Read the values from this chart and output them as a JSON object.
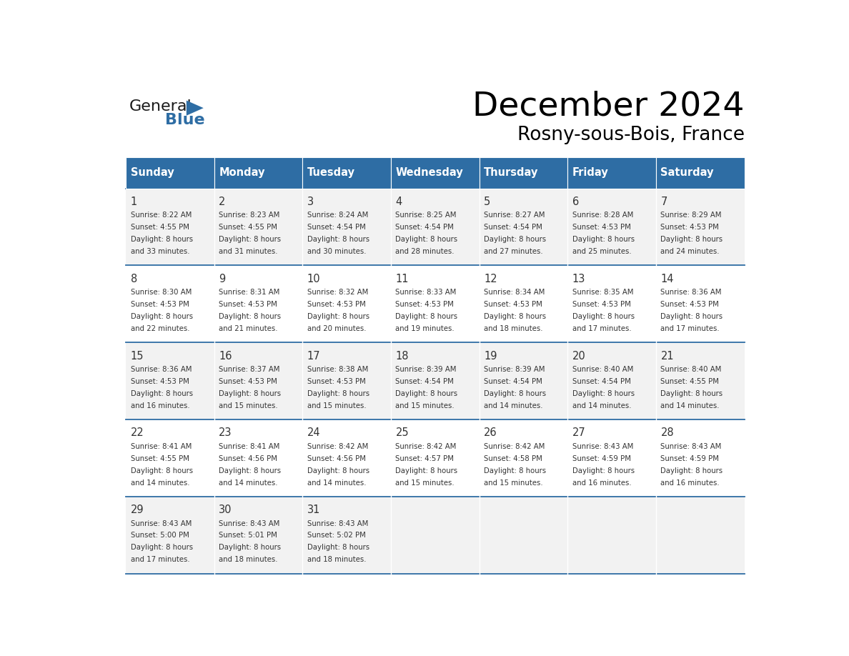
{
  "title": "December 2024",
  "subtitle": "Rosny-sous-Bois, France",
  "days_of_week": [
    "Sunday",
    "Monday",
    "Tuesday",
    "Wednesday",
    "Thursday",
    "Friday",
    "Saturday"
  ],
  "header_bg": "#2E6DA4",
  "header_text": "#FFFFFF",
  "cell_bg_odd": "#F2F2F2",
  "cell_bg_even": "#FFFFFF",
  "day_num_color": "#333333",
  "text_color": "#333333",
  "line_color": "#2E6DA4",
  "logo_blue_color": "#2E6DA4",
  "weeks": [
    {
      "days": [
        {
          "date": 1,
          "col": 0,
          "sunrise": "8:22 AM",
          "sunset": "4:55 PM",
          "daylight": "8 hours and 33 minutes."
        },
        {
          "date": 2,
          "col": 1,
          "sunrise": "8:23 AM",
          "sunset": "4:55 PM",
          "daylight": "8 hours and 31 minutes."
        },
        {
          "date": 3,
          "col": 2,
          "sunrise": "8:24 AM",
          "sunset": "4:54 PM",
          "daylight": "8 hours and 30 minutes."
        },
        {
          "date": 4,
          "col": 3,
          "sunrise": "8:25 AM",
          "sunset": "4:54 PM",
          "daylight": "8 hours and 28 minutes."
        },
        {
          "date": 5,
          "col": 4,
          "sunrise": "8:27 AM",
          "sunset": "4:54 PM",
          "daylight": "8 hours and 27 minutes."
        },
        {
          "date": 6,
          "col": 5,
          "sunrise": "8:28 AM",
          "sunset": "4:53 PM",
          "daylight": "8 hours and 25 minutes."
        },
        {
          "date": 7,
          "col": 6,
          "sunrise": "8:29 AM",
          "sunset": "4:53 PM",
          "daylight": "8 hours and 24 minutes."
        }
      ]
    },
    {
      "days": [
        {
          "date": 8,
          "col": 0,
          "sunrise": "8:30 AM",
          "sunset": "4:53 PM",
          "daylight": "8 hours and 22 minutes."
        },
        {
          "date": 9,
          "col": 1,
          "sunrise": "8:31 AM",
          "sunset": "4:53 PM",
          "daylight": "8 hours and 21 minutes."
        },
        {
          "date": 10,
          "col": 2,
          "sunrise": "8:32 AM",
          "sunset": "4:53 PM",
          "daylight": "8 hours and 20 minutes."
        },
        {
          "date": 11,
          "col": 3,
          "sunrise": "8:33 AM",
          "sunset": "4:53 PM",
          "daylight": "8 hours and 19 minutes."
        },
        {
          "date": 12,
          "col": 4,
          "sunrise": "8:34 AM",
          "sunset": "4:53 PM",
          "daylight": "8 hours and 18 minutes."
        },
        {
          "date": 13,
          "col": 5,
          "sunrise": "8:35 AM",
          "sunset": "4:53 PM",
          "daylight": "8 hours and 17 minutes."
        },
        {
          "date": 14,
          "col": 6,
          "sunrise": "8:36 AM",
          "sunset": "4:53 PM",
          "daylight": "8 hours and 17 minutes."
        }
      ]
    },
    {
      "days": [
        {
          "date": 15,
          "col": 0,
          "sunrise": "8:36 AM",
          "sunset": "4:53 PM",
          "daylight": "8 hours and 16 minutes."
        },
        {
          "date": 16,
          "col": 1,
          "sunrise": "8:37 AM",
          "sunset": "4:53 PM",
          "daylight": "8 hours and 15 minutes."
        },
        {
          "date": 17,
          "col": 2,
          "sunrise": "8:38 AM",
          "sunset": "4:53 PM",
          "daylight": "8 hours and 15 minutes."
        },
        {
          "date": 18,
          "col": 3,
          "sunrise": "8:39 AM",
          "sunset": "4:54 PM",
          "daylight": "8 hours and 15 minutes."
        },
        {
          "date": 19,
          "col": 4,
          "sunrise": "8:39 AM",
          "sunset": "4:54 PM",
          "daylight": "8 hours and 14 minutes."
        },
        {
          "date": 20,
          "col": 5,
          "sunrise": "8:40 AM",
          "sunset": "4:54 PM",
          "daylight": "8 hours and 14 minutes."
        },
        {
          "date": 21,
          "col": 6,
          "sunrise": "8:40 AM",
          "sunset": "4:55 PM",
          "daylight": "8 hours and 14 minutes."
        }
      ]
    },
    {
      "days": [
        {
          "date": 22,
          "col": 0,
          "sunrise": "8:41 AM",
          "sunset": "4:55 PM",
          "daylight": "8 hours and 14 minutes."
        },
        {
          "date": 23,
          "col": 1,
          "sunrise": "8:41 AM",
          "sunset": "4:56 PM",
          "daylight": "8 hours and 14 minutes."
        },
        {
          "date": 24,
          "col": 2,
          "sunrise": "8:42 AM",
          "sunset": "4:56 PM",
          "daylight": "8 hours and 14 minutes."
        },
        {
          "date": 25,
          "col": 3,
          "sunrise": "8:42 AM",
          "sunset": "4:57 PM",
          "daylight": "8 hours and 15 minutes."
        },
        {
          "date": 26,
          "col": 4,
          "sunrise": "8:42 AM",
          "sunset": "4:58 PM",
          "daylight": "8 hours and 15 minutes."
        },
        {
          "date": 27,
          "col": 5,
          "sunrise": "8:43 AM",
          "sunset": "4:59 PM",
          "daylight": "8 hours and 16 minutes."
        },
        {
          "date": 28,
          "col": 6,
          "sunrise": "8:43 AM",
          "sunset": "4:59 PM",
          "daylight": "8 hours and 16 minutes."
        }
      ]
    },
    {
      "days": [
        {
          "date": 29,
          "col": 0,
          "sunrise": "8:43 AM",
          "sunset": "5:00 PM",
          "daylight": "8 hours and 17 minutes."
        },
        {
          "date": 30,
          "col": 1,
          "sunrise": "8:43 AM",
          "sunset": "5:01 PM",
          "daylight": "8 hours and 18 minutes."
        },
        {
          "date": 31,
          "col": 2,
          "sunrise": "8:43 AM",
          "sunset": "5:02 PM",
          "daylight": "8 hours and 18 minutes."
        }
      ]
    }
  ]
}
